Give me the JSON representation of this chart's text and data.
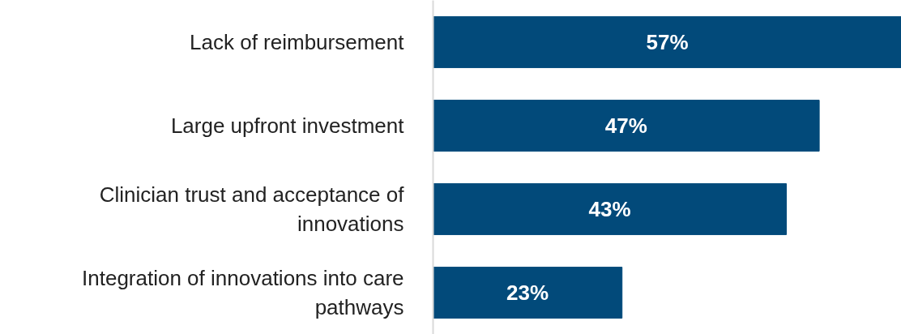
{
  "chart_data": {
    "type": "bar",
    "orientation": "horizontal",
    "categories": [
      "Lack of reimbursement",
      "Large upfront investment",
      "Clinician trust and acceptance of innovations",
      "Integration of innovations into care pathways"
    ],
    "values": [
      57,
      47,
      43,
      23
    ],
    "value_labels": [
      "57%",
      "47%",
      "43%",
      "23%"
    ],
    "color": "#024a7a",
    "xlim": [
      0,
      57
    ],
    "grid": false,
    "tick_labels": "y"
  }
}
